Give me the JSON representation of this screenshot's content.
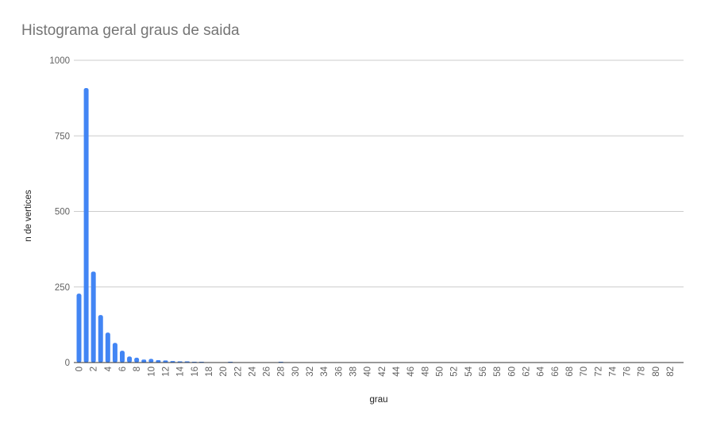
{
  "chart_data": {
    "type": "bar",
    "title": "Histograma geral graus de saida",
    "xlabel": "grau",
    "ylabel": "n de vertices",
    "ylim": [
      0,
      1000
    ],
    "yticks": [
      0,
      250,
      500,
      750,
      1000
    ],
    "grid": true,
    "legend": "none",
    "color": "#4285f4",
    "x_range": [
      0,
      83
    ],
    "x_tick_step": 2,
    "x": [
      0,
      1,
      2,
      3,
      4,
      5,
      6,
      7,
      8,
      9,
      10,
      11,
      12,
      13,
      14,
      15,
      16,
      17,
      21,
      28
    ],
    "values": [
      228,
      908,
      301,
      157,
      99,
      65,
      39,
      20,
      16,
      10,
      12,
      8,
      7,
      5,
      4,
      4,
      2,
      2,
      2,
      2
    ]
  }
}
